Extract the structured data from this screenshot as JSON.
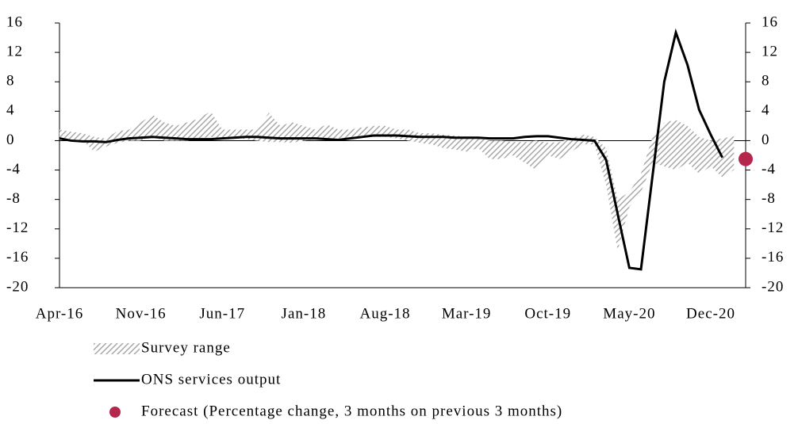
{
  "chart_data": {
    "type": "line",
    "categories": [
      "Apr-16",
      null,
      null,
      null,
      null,
      null,
      null,
      "Nov-16",
      null,
      null,
      null,
      null,
      null,
      null,
      "Jun-17",
      null,
      null,
      null,
      null,
      null,
      null,
      "Jan-18",
      null,
      null,
      null,
      null,
      null,
      null,
      "Aug-18",
      null,
      null,
      null,
      null,
      null,
      null,
      "Mar-19",
      null,
      null,
      null,
      null,
      null,
      null,
      "Oct-19",
      null,
      null,
      null,
      null,
      null,
      null,
      "May-20",
      null,
      null,
      null,
      null,
      null,
      null,
      "Dec-20",
      null,
      null,
      null
    ],
    "ylim": [
      -20,
      16
    ],
    "yticks": [
      -20,
      -16,
      -12,
      -8,
      -4,
      0,
      4,
      8,
      12,
      16
    ],
    "y2lim": [
      -20,
      16
    ],
    "y2ticks": [
      -20,
      -16,
      -12,
      -8,
      -4,
      0,
      4,
      8,
      12,
      16
    ],
    "series": [
      {
        "name": "Survey range",
        "type": "band",
        "color": "#b0b0b0",
        "high": [
          1.5,
          1.2,
          1.0,
          0.5,
          0.3,
          1.3,
          1.5,
          2.5,
          3.5,
          2.5,
          2,
          2.5,
          3,
          4,
          1.5,
          1.5,
          1.5,
          1.5,
          3.8,
          2,
          2.5,
          2,
          1.5,
          2.2,
          1.5,
          1.5,
          1.8,
          2,
          2,
          1.5,
          1.5,
          1,
          1,
          0.8,
          0.7,
          0.5,
          0.3,
          0,
          0,
          -0.2,
          -0.2,
          0,
          -0.3,
          -0.2,
          0.3,
          0.8,
          0.5,
          -1,
          -8,
          -7,
          -4.5,
          0.5,
          2.5,
          2.8,
          2,
          0.5,
          0,
          0.3,
          0.6,
          null
        ],
        "low": [
          0.5,
          0.2,
          0,
          -1.5,
          -0.8,
          -0.3,
          0,
          0,
          0.5,
          0,
          0,
          0,
          0.3,
          0.5,
          0.3,
          0.5,
          0.2,
          0,
          -0.2,
          -0.2,
          -0.3,
          0,
          0.2,
          0.2,
          0.3,
          0.3,
          0.5,
          0.5,
          0.5,
          0.3,
          0,
          -0.3,
          -0.5,
          -1,
          -1.2,
          -1.5,
          -1,
          -2.5,
          -2.5,
          -2,
          -3,
          -4,
          -2,
          -2.5,
          -1.5,
          -0.5,
          -0.5,
          -6,
          -15,
          -9,
          -7,
          -3,
          -3.5,
          -4,
          -3,
          -4.5,
          -3.5,
          -5,
          -4,
          null
        ]
      },
      {
        "name": "ONS services output",
        "type": "line",
        "color": "#000000",
        "values": [
          0.3,
          0.0,
          -0.1,
          -0.1,
          -0.2,
          0.1,
          0.3,
          0.4,
          0.5,
          0.4,
          0.3,
          0.2,
          0.2,
          0.2,
          0.3,
          0.4,
          0.5,
          0.5,
          0.4,
          0.3,
          0.3,
          0.3,
          0.3,
          0.2,
          0.1,
          0.3,
          0.5,
          0.7,
          0.7,
          0.7,
          0.6,
          0.5,
          0.5,
          0.5,
          0.4,
          0.4,
          0.4,
          0.3,
          0.3,
          0.3,
          0.5,
          0.6,
          0.6,
          0.4,
          0.2,
          0.1,
          0.0,
          -2.6,
          -10,
          -17.3,
          -17.5,
          -4.7,
          8,
          14.7,
          10.3,
          4.2,
          0.8,
          -2.3,
          null,
          null
        ]
      },
      {
        "name": "Forecast (Percentage change, 3 months on previous 3 months)",
        "type": "point",
        "color": "#b5264c",
        "values": [
          null,
          null,
          null,
          null,
          null,
          null,
          null,
          null,
          null,
          null,
          null,
          null,
          null,
          null,
          null,
          null,
          null,
          null,
          null,
          null,
          null,
          null,
          null,
          null,
          null,
          null,
          null,
          null,
          null,
          null,
          null,
          null,
          null,
          null,
          null,
          null,
          null,
          null,
          null,
          null,
          null,
          null,
          null,
          null,
          null,
          null,
          null,
          null,
          null,
          null,
          null,
          null,
          null,
          null,
          null,
          null,
          null,
          null,
          null,
          -2.5
        ]
      }
    ]
  }
}
